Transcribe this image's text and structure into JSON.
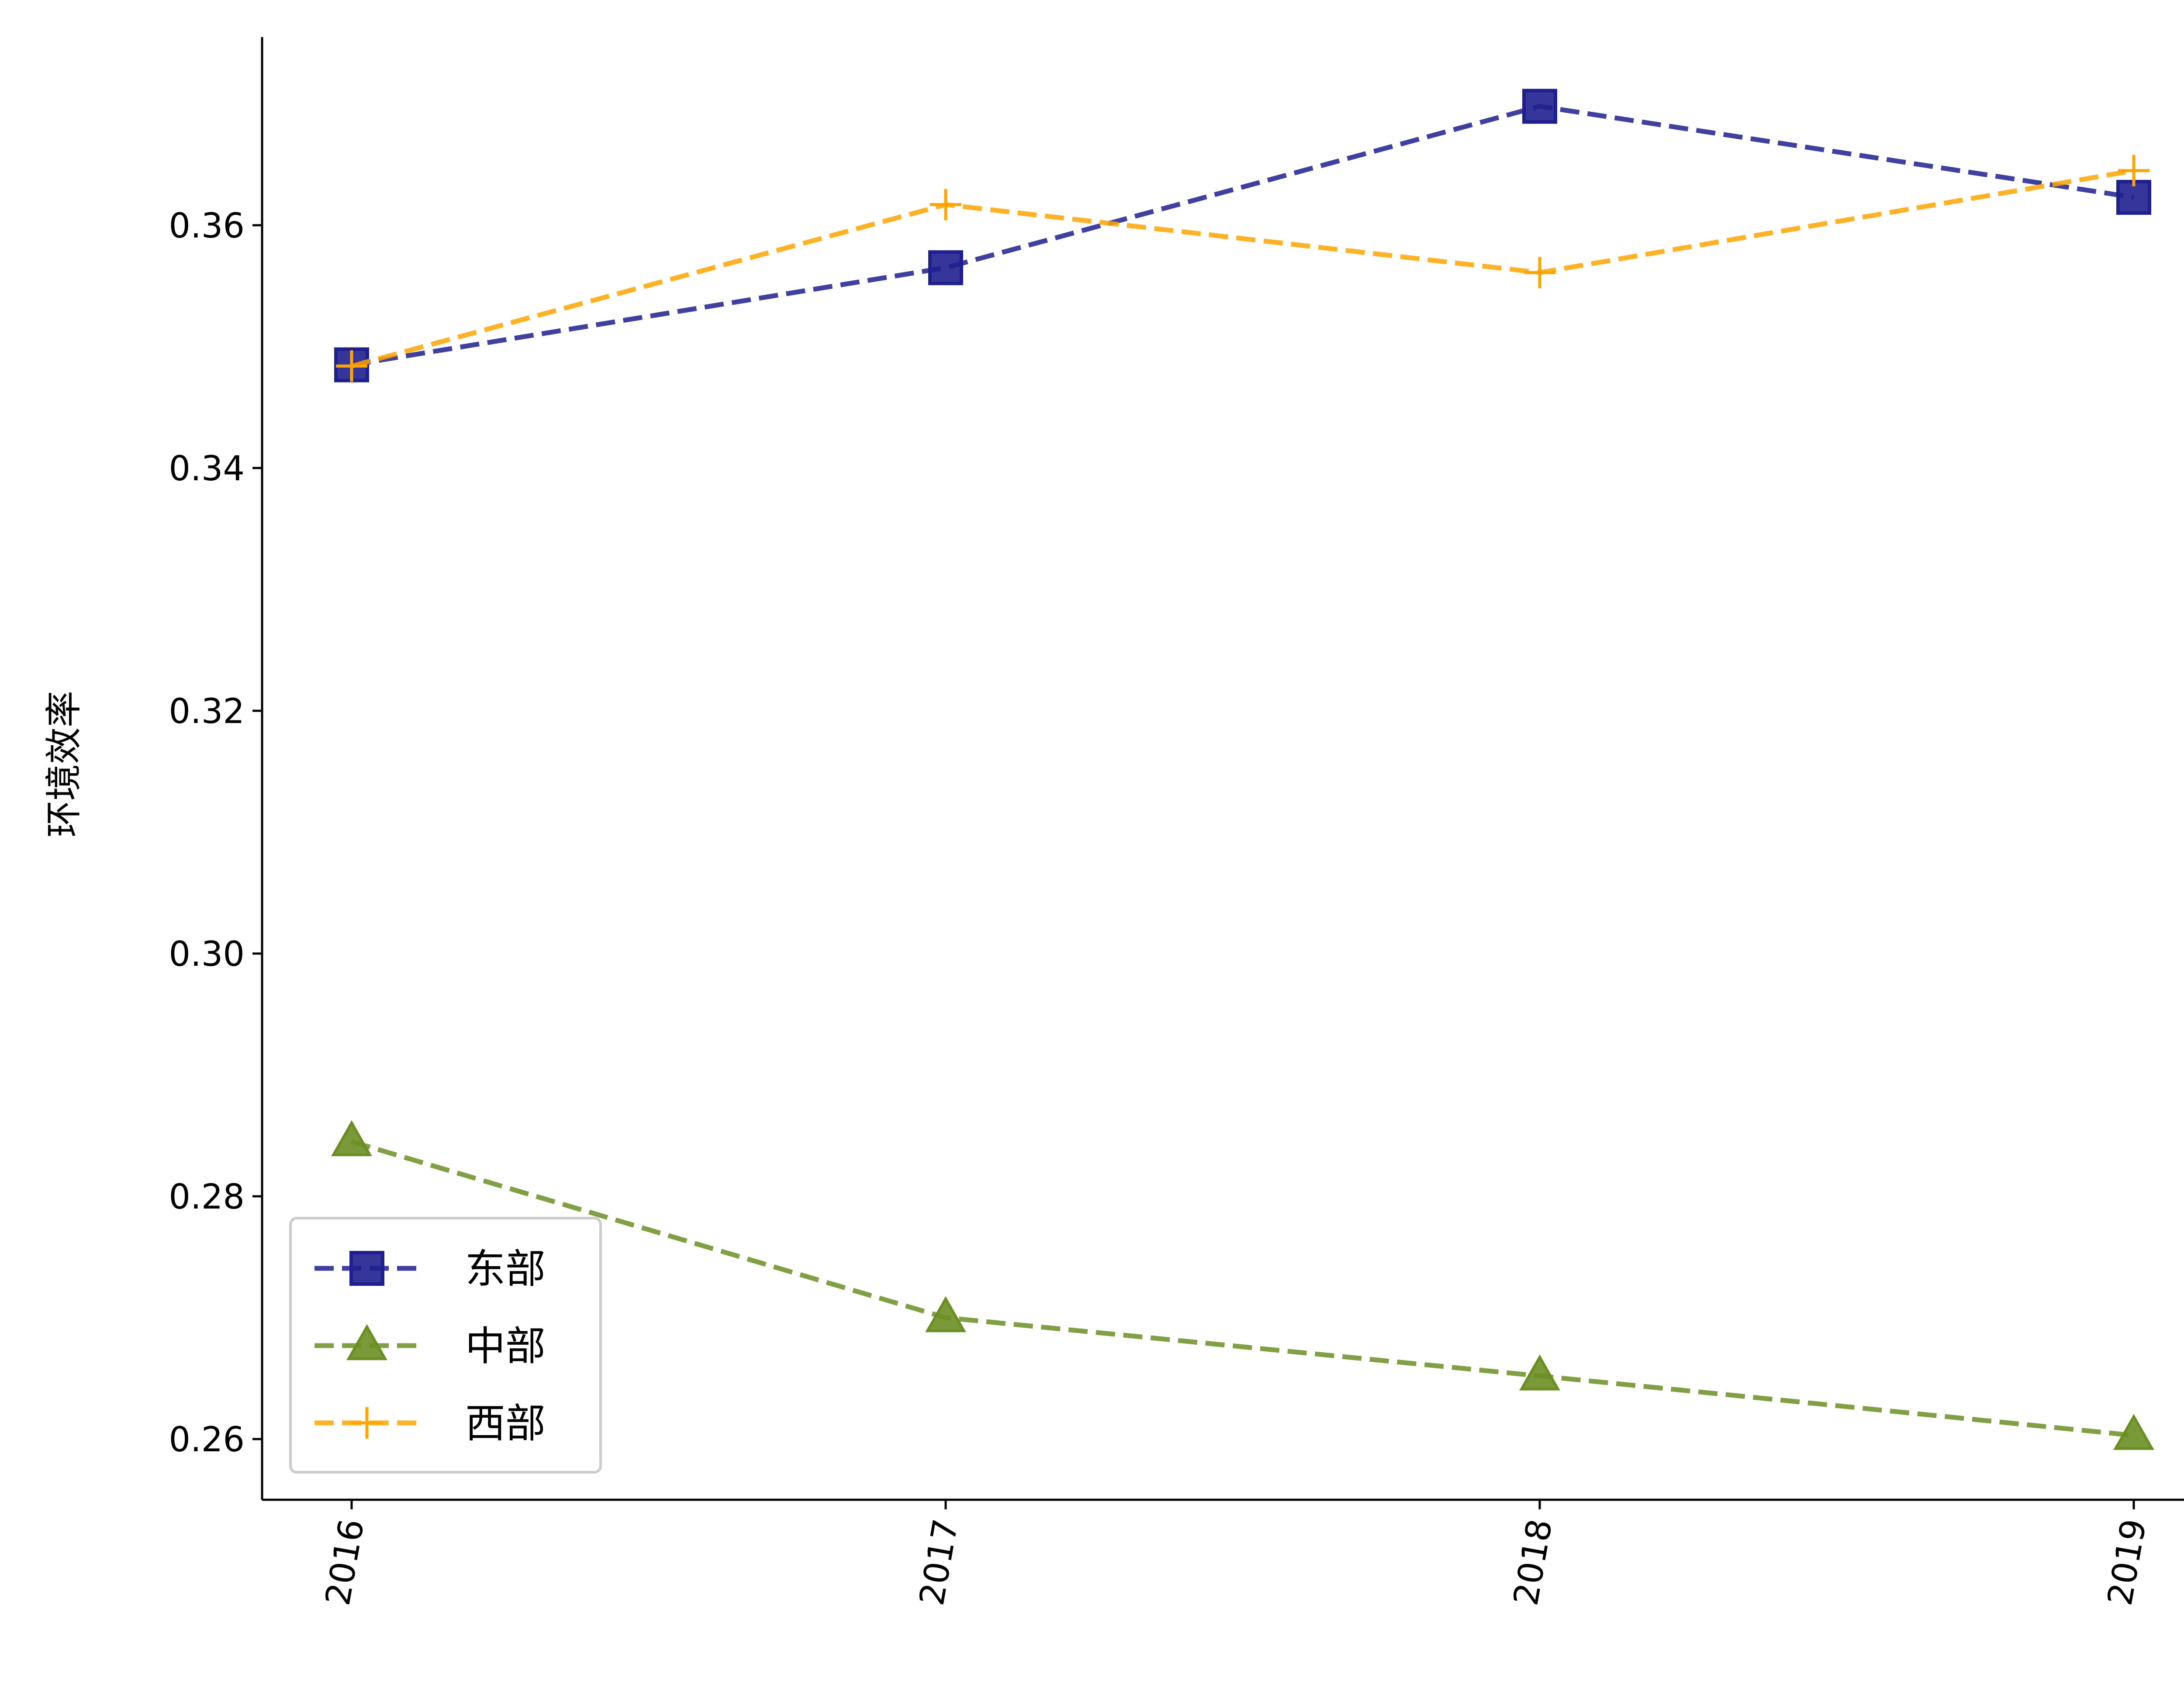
{
  "chart_data": {
    "type": "line",
    "title": "",
    "xlabel": "",
    "ylabel": "环境效率",
    "categories": [
      "2016",
      "2017",
      "2018",
      "2019"
    ],
    "ylim": [
      0.255,
      0.3755
    ],
    "yticks": [
      0.26,
      0.28,
      0.3,
      0.32,
      0.34,
      0.36
    ],
    "ytick_labels": [
      "0.26",
      "0.28",
      "0.30",
      "0.32",
      "0.34",
      "0.36"
    ],
    "grid": false,
    "legend_position": "lower-left",
    "series": [
      {
        "name": "东部",
        "values": [
          0.3485,
          0.3565,
          0.3698,
          0.3623
        ],
        "color": "#1f1f8f",
        "marker": "square",
        "linestyle": "dashed"
      },
      {
        "name": "中部",
        "values": [
          0.2845,
          0.27,
          0.2652,
          0.2603
        ],
        "color": "#6b8e23",
        "marker": "triangle",
        "linestyle": "dashed"
      },
      {
        "name": "西部",
        "values": [
          0.3484,
          0.3617,
          0.3561,
          0.3645
        ],
        "color": "#ffa500",
        "marker": "plus",
        "linestyle": "dashed"
      }
    ]
  }
}
